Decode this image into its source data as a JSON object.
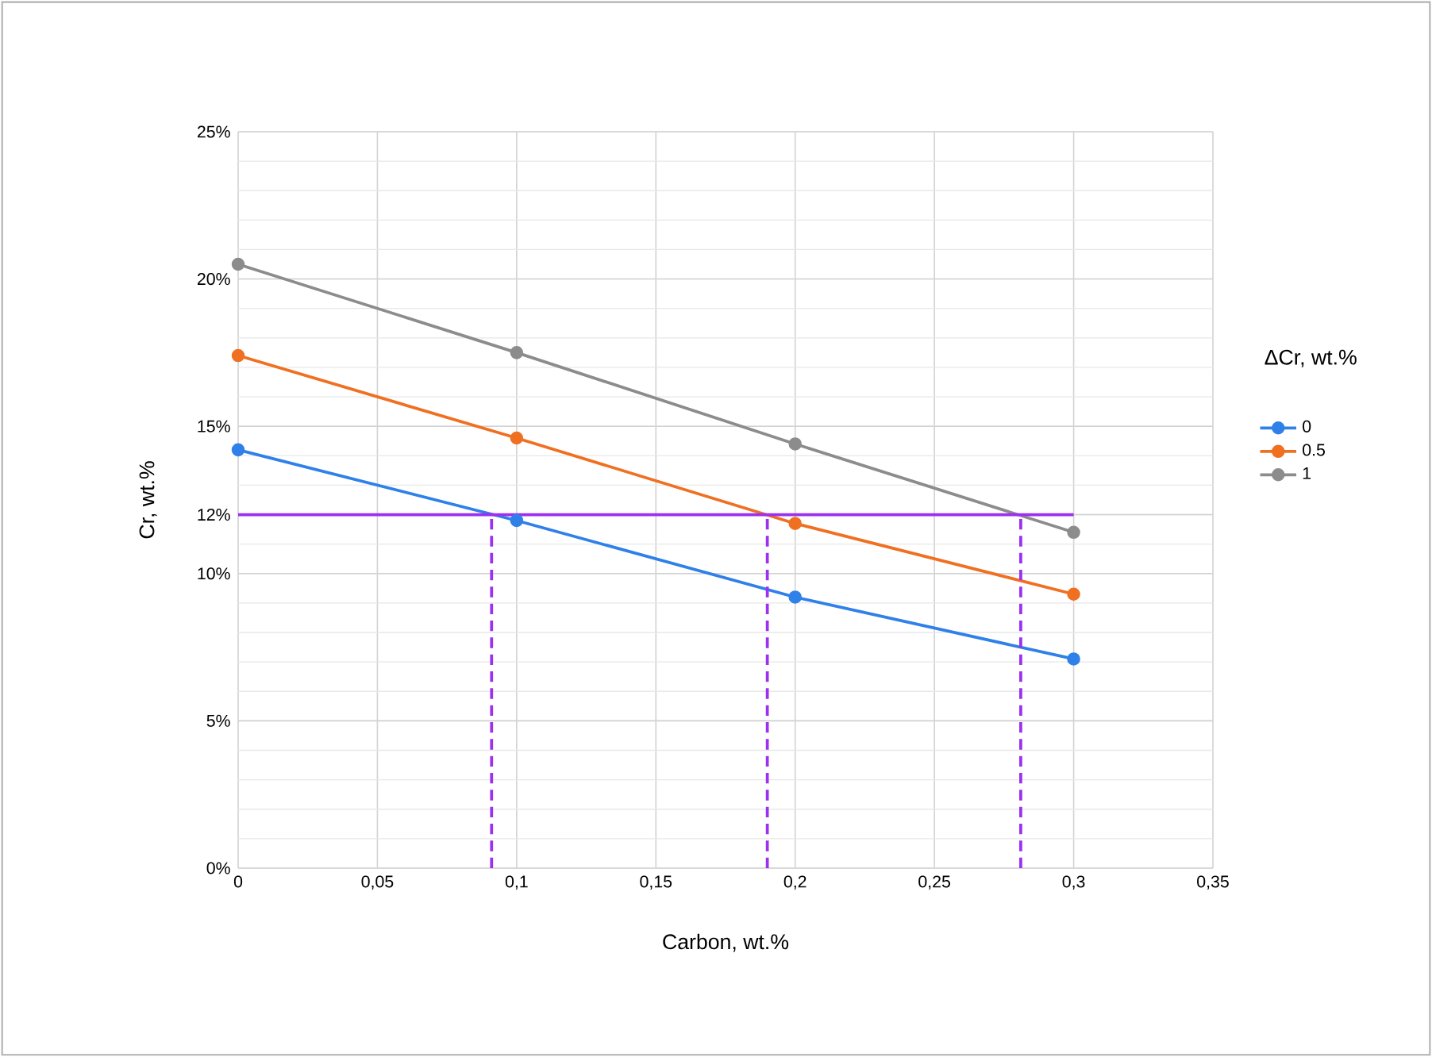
{
  "chart_data": {
    "type": "line",
    "xlabel": "Carbon, wt.%",
    "ylabel": "Cr, wt.%",
    "legend_title": "ΔCr, wt.%",
    "x": [
      0,
      0.1,
      0.2,
      0.3
    ],
    "series": [
      {
        "name": "0",
        "color": "#2f80e8",
        "values": [
          14.2,
          11.8,
          9.2,
          7.1
        ]
      },
      {
        "name": "0.5",
        "color": "#f07022",
        "values": [
          17.4,
          14.6,
          11.7,
          9.3
        ]
      },
      {
        "name": "1",
        "color": "#8c8c8c",
        "values": [
          20.5,
          17.5,
          14.4,
          11.4
        ]
      },
      {
        "color": "#9b30f0",
        "x": [
          0,
          0.3
        ],
        "values": [
          12,
          12
        ],
        "marker": "none",
        "line_style": "solid"
      },
      {
        "color": "#9b30f0",
        "x": [
          0.091,
          0.091
        ],
        "values": [
          0,
          12
        ],
        "marker": "none",
        "line_style": "dashed"
      },
      {
        "color": "#9b30f0",
        "x": [
          0.19,
          0.19
        ],
        "values": [
          0,
          12
        ],
        "marker": "none",
        "line_style": "dashed"
      },
      {
        "color": "#9b30f0",
        "x": [
          0.281,
          0.281
        ],
        "values": [
          0,
          12
        ],
        "marker": "none",
        "line_style": "dashed"
      }
    ],
    "xlim": [
      0,
      0.35
    ],
    "ylim": [
      0,
      25
    ],
    "xticks": [
      0,
      {
        "value": 0.05,
        "label": "0,05"
      },
      {
        "value": 0.1,
        "label": "0,1"
      },
      {
        "value": 0.15,
        "label": "0,15"
      },
      {
        "value": 0.2,
        "label": "0,2"
      },
      {
        "value": 0.25,
        "label": "0,25"
      },
      {
        "value": 0.3,
        "label": "0,3"
      },
      {
        "value": 0.35,
        "label": "0,35"
      }
    ],
    "yticks": [
      {
        "value": 0,
        "label": "0%"
      },
      {
        "value": 5,
        "label": "5%"
      },
      {
        "value": 10,
        "label": "10%"
      },
      {
        "value": 12,
        "label": "12%"
      },
      {
        "value": 15,
        "label": "15%"
      },
      {
        "value": 20,
        "label": "20%"
      },
      {
        "value": 25,
        "label": "25%"
      }
    ],
    "grid": true,
    "legend": "right",
    "marker": "circle",
    "line_style": "solid"
  }
}
